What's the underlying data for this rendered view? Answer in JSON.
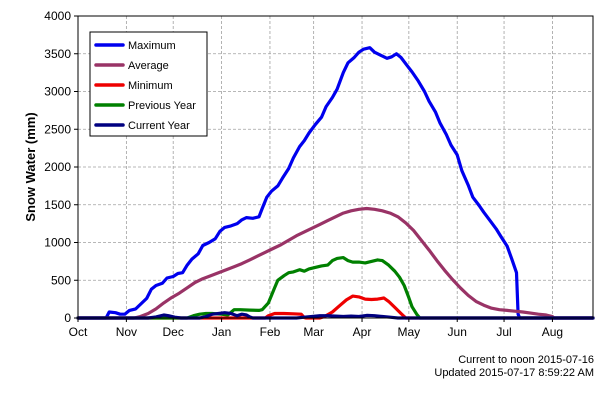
{
  "chart_data": {
    "type": "line",
    "title": "",
    "xlabel": "",
    "ylabel": "Snow Water (mm)",
    "ylim": [
      0,
      4000
    ],
    "yticks": [
      0,
      500,
      1000,
      1500,
      2000,
      2500,
      3000,
      3500,
      4000
    ],
    "x_unit": "days since Oct 1",
    "x_range": [
      0,
      330
    ],
    "months": [
      "Oct",
      "Nov",
      "Dec",
      "Jan",
      "Feb",
      "Mar",
      "Apr",
      "May",
      "Jun",
      "Jul",
      "Aug"
    ],
    "month_starts": [
      0,
      31,
      61,
      92,
      123,
      151,
      182,
      212,
      243,
      273,
      304
    ],
    "grid": true,
    "legend_position": "top-left",
    "series": [
      {
        "name": "Maximum",
        "color": "#0000ee",
        "points": [
          [
            0,
            0
          ],
          [
            18,
            0
          ],
          [
            20,
            80
          ],
          [
            24,
            70
          ],
          [
            27,
            50
          ],
          [
            30,
            50
          ],
          [
            33,
            100
          ],
          [
            37,
            120
          ],
          [
            40,
            180
          ],
          [
            44,
            260
          ],
          [
            47,
            380
          ],
          [
            50,
            430
          ],
          [
            54,
            460
          ],
          [
            57,
            530
          ],
          [
            61,
            550
          ],
          [
            64,
            590
          ],
          [
            67,
            600
          ],
          [
            70,
            700
          ],
          [
            73,
            780
          ],
          [
            77,
            850
          ],
          [
            80,
            960
          ],
          [
            84,
            1000
          ],
          [
            88,
            1050
          ],
          [
            91,
            1150
          ],
          [
            94,
            1200
          ],
          [
            98,
            1220
          ],
          [
            102,
            1250
          ],
          [
            105,
            1300
          ],
          [
            108,
            1330
          ],
          [
            112,
            1320
          ],
          [
            116,
            1340
          ],
          [
            118,
            1450
          ],
          [
            121,
            1600
          ],
          [
            124,
            1680
          ],
          [
            128,
            1750
          ],
          [
            131,
            1850
          ],
          [
            135,
            1980
          ],
          [
            138,
            2120
          ],
          [
            142,
            2270
          ],
          [
            145,
            2350
          ],
          [
            148,
            2450
          ],
          [
            152,
            2560
          ],
          [
            156,
            2660
          ],
          [
            159,
            2800
          ],
          [
            163,
            2920
          ],
          [
            166,
            3030
          ],
          [
            170,
            3250
          ],
          [
            173,
            3380
          ],
          [
            177,
            3450
          ],
          [
            180,
            3520
          ],
          [
            183,
            3560
          ],
          [
            187,
            3580
          ],
          [
            190,
            3520
          ],
          [
            194,
            3480
          ],
          [
            198,
            3440
          ],
          [
            201,
            3460
          ],
          [
            204,
            3500
          ],
          [
            207,
            3450
          ],
          [
            211,
            3340
          ],
          [
            214,
            3260
          ],
          [
            218,
            3140
          ],
          [
            222,
            3000
          ],
          [
            225,
            2870
          ],
          [
            229,
            2730
          ],
          [
            232,
            2580
          ],
          [
            236,
            2430
          ],
          [
            239,
            2290
          ],
          [
            243,
            2160
          ],
          [
            246,
            1950
          ],
          [
            250,
            1760
          ],
          [
            253,
            1600
          ],
          [
            257,
            1490
          ],
          [
            260,
            1400
          ],
          [
            264,
            1290
          ],
          [
            268,
            1180
          ],
          [
            271,
            1080
          ],
          [
            275,
            950
          ],
          [
            278,
            780
          ],
          [
            281,
            600
          ],
          [
            282,
            50
          ],
          [
            283,
            0
          ],
          [
            330,
            0
          ]
        ]
      },
      {
        "name": "Average",
        "color": "#993366",
        "points": [
          [
            0,
            0
          ],
          [
            36,
            0
          ],
          [
            40,
            20
          ],
          [
            45,
            60
          ],
          [
            50,
            120
          ],
          [
            55,
            200
          ],
          [
            60,
            270
          ],
          [
            65,
            330
          ],
          [
            70,
            400
          ],
          [
            75,
            470
          ],
          [
            80,
            520
          ],
          [
            85,
            560
          ],
          [
            90,
            600
          ],
          [
            95,
            640
          ],
          [
            100,
            680
          ],
          [
            105,
            720
          ],
          [
            110,
            770
          ],
          [
            115,
            820
          ],
          [
            120,
            870
          ],
          [
            125,
            920
          ],
          [
            130,
            970
          ],
          [
            135,
            1030
          ],
          [
            140,
            1090
          ],
          [
            145,
            1140
          ],
          [
            150,
            1190
          ],
          [
            155,
            1240
          ],
          [
            160,
            1290
          ],
          [
            165,
            1340
          ],
          [
            170,
            1390
          ],
          [
            175,
            1420
          ],
          [
            180,
            1440
          ],
          [
            185,
            1450
          ],
          [
            190,
            1440
          ],
          [
            195,
            1420
          ],
          [
            200,
            1390
          ],
          [
            205,
            1340
          ],
          [
            210,
            1260
          ],
          [
            215,
            1160
          ],
          [
            220,
            1030
          ],
          [
            225,
            900
          ],
          [
            230,
            760
          ],
          [
            235,
            630
          ],
          [
            240,
            510
          ],
          [
            245,
            400
          ],
          [
            250,
            300
          ],
          [
            255,
            220
          ],
          [
            260,
            170
          ],
          [
            265,
            130
          ],
          [
            270,
            110
          ],
          [
            275,
            100
          ],
          [
            280,
            90
          ],
          [
            285,
            80
          ],
          [
            290,
            65
          ],
          [
            295,
            50
          ],
          [
            300,
            40
          ],
          [
            304,
            20
          ],
          [
            305,
            0
          ],
          [
            330,
            0
          ]
        ]
      },
      {
        "name": "Minimum",
        "color": "#ee0000",
        "points": [
          [
            0,
            0
          ],
          [
            120,
            0
          ],
          [
            122,
            30
          ],
          [
            126,
            60
          ],
          [
            132,
            60
          ],
          [
            138,
            55
          ],
          [
            143,
            50
          ],
          [
            145,
            5
          ],
          [
            146,
            0
          ],
          [
            155,
            0
          ],
          [
            158,
            20
          ],
          [
            163,
            80
          ],
          [
            168,
            170
          ],
          [
            172,
            240
          ],
          [
            176,
            290
          ],
          [
            180,
            280
          ],
          [
            184,
            250
          ],
          [
            188,
            245
          ],
          [
            192,
            250
          ],
          [
            196,
            265
          ],
          [
            199,
            220
          ],
          [
            203,
            140
          ],
          [
            207,
            60
          ],
          [
            209,
            20
          ],
          [
            210,
            0
          ],
          [
            330,
            0
          ]
        ]
      },
      {
        "name": "Previous Year",
        "color": "#008000",
        "points": [
          [
            0,
            0
          ],
          [
            70,
            0
          ],
          [
            74,
            30
          ],
          [
            78,
            50
          ],
          [
            82,
            60
          ],
          [
            86,
            60
          ],
          [
            92,
            50
          ],
          [
            96,
            40
          ],
          [
            100,
            110
          ],
          [
            104,
            110
          ],
          [
            110,
            105
          ],
          [
            116,
            100
          ],
          [
            118,
            110
          ],
          [
            122,
            200
          ],
          [
            124,
            300
          ],
          [
            126,
            400
          ],
          [
            128,
            500
          ],
          [
            132,
            560
          ],
          [
            135,
            600
          ],
          [
            138,
            610
          ],
          [
            142,
            640
          ],
          [
            145,
            620
          ],
          [
            148,
            650
          ],
          [
            152,
            670
          ],
          [
            156,
            690
          ],
          [
            160,
            700
          ],
          [
            163,
            760
          ],
          [
            166,
            790
          ],
          [
            170,
            800
          ],
          [
            173,
            760
          ],
          [
            176,
            740
          ],
          [
            180,
            740
          ],
          [
            184,
            730
          ],
          [
            188,
            750
          ],
          [
            192,
            770
          ],
          [
            195,
            760
          ],
          [
            199,
            700
          ],
          [
            203,
            620
          ],
          [
            206,
            540
          ],
          [
            209,
            430
          ],
          [
            212,
            270
          ],
          [
            214,
            150
          ],
          [
            217,
            50
          ],
          [
            219,
            0
          ],
          [
            330,
            0
          ]
        ]
      },
      {
        "name": "Current Year",
        "color": "#000080",
        "points": [
          [
            0,
            0
          ],
          [
            45,
            0
          ],
          [
            50,
            15
          ],
          [
            55,
            40
          ],
          [
            58,
            30
          ],
          [
            62,
            10
          ],
          [
            66,
            0
          ],
          [
            78,
            0
          ],
          [
            82,
            20
          ],
          [
            86,
            50
          ],
          [
            90,
            60
          ],
          [
            94,
            70
          ],
          [
            98,
            60
          ],
          [
            102,
            30
          ],
          [
            105,
            50
          ],
          [
            108,
            40
          ],
          [
            110,
            15
          ],
          [
            112,
            0
          ],
          [
            140,
            0
          ],
          [
            145,
            10
          ],
          [
            150,
            20
          ],
          [
            155,
            30
          ],
          [
            160,
            30
          ],
          [
            165,
            25
          ],
          [
            170,
            20
          ],
          [
            175,
            25
          ],
          [
            180,
            20
          ],
          [
            185,
            35
          ],
          [
            190,
            30
          ],
          [
            195,
            20
          ],
          [
            200,
            10
          ],
          [
            205,
            0
          ],
          [
            330,
            0
          ]
        ]
      }
    ]
  },
  "footer": {
    "line1": "Current to noon 2015-07-16",
    "line2": "Updated 2015-07-17 8:59:22 AM"
  }
}
